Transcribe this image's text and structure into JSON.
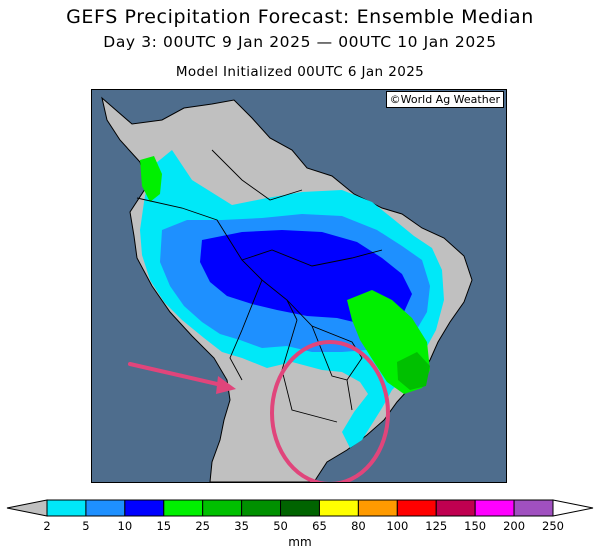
{
  "title": {
    "line1": "GEFS Precipitation Forecast: Ensemble Median",
    "line2": "Day 3: 00UTC 9 Jan 2025 — 00UTC 10 Jan 2025",
    "line3": "Model Initialized 00UTC 6 Jan 2025"
  },
  "map": {
    "credit": "©World Ag Weather",
    "ocean_color": "#4e6d8d",
    "land_color": "#c0c0c0",
    "annotations": [
      {
        "type": "arrow",
        "color": "#e0457b",
        "points_to": "Paraguay / northern Argentina"
      },
      {
        "type": "circle",
        "color": "#e0457b",
        "encloses": "Paraguay, southern Brazil, Uruguay"
      }
    ]
  },
  "legend": {
    "unit": "mm",
    "ticks": [
      "2",
      "5",
      "10",
      "15",
      "25",
      "35",
      "50",
      "65",
      "80",
      "100",
      "125",
      "150",
      "200",
      "250"
    ],
    "colors": [
      "#00e8f8",
      "#1e90ff",
      "#0000ff",
      "#00f000",
      "#00c000",
      "#009000",
      "#006400",
      "#ffff00",
      "#ff9a00",
      "#ff0000",
      "#c00050",
      "#ff00ff",
      "#a050c0"
    ],
    "below_color": "#c0c0c0",
    "above_color": "#ffffff"
  }
}
